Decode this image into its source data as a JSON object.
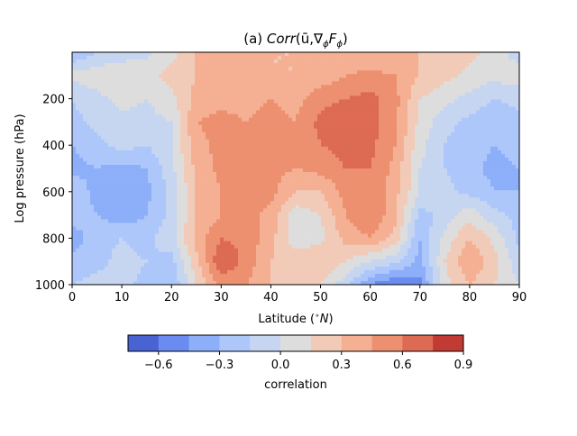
{
  "chart_data": {
    "type": "heatmap",
    "title": "(a) Corr(ū,∇φFφ)",
    "title_parts": {
      "prefix": "(a) ",
      "func": "Corr",
      "args": "(ū,∇",
      "sub1": "ϕ",
      "mid": "F",
      "sub2": "ϕ",
      "close": ")"
    },
    "xlabel": "Latitude (°N)",
    "xlabel_parts": {
      "text": "Latitude (",
      "deg": "∘",
      "unit": "N",
      "close": ")"
    },
    "ylabel": "Log pressure (hPa)",
    "xlim": [
      0,
      90
    ],
    "ylim": [
      0,
      1000
    ],
    "y_inverted": true,
    "x_ticks": [
      "0",
      "10",
      "20",
      "30",
      "40",
      "50",
      "60",
      "70",
      "80",
      "90"
    ],
    "y_ticks": [
      "200",
      "400",
      "600",
      "800",
      "1000"
    ],
    "colorbar": {
      "label": "correlation",
      "levels": [
        -0.75,
        -0.6,
        -0.45,
        -0.3,
        -0.15,
        0.0,
        0.15,
        0.3,
        0.45,
        0.6,
        0.75,
        0.9
      ],
      "colors": [
        "#4a63d3",
        "#6a8bef",
        "#8daff9",
        "#adc7fb",
        "#c6d6f1",
        "#dddddd",
        "#f2cbb8",
        "#f5b094",
        "#ed9070",
        "#dd6a52",
        "#c13b34"
      ],
      "tick_values": [
        -0.6,
        -0.3,
        0.0,
        0.3,
        0.6,
        0.9
      ],
      "tick_labels": [
        "−0.6",
        "−0.3",
        "0.0",
        "0.3",
        "0.6",
        "0.9"
      ]
    },
    "grid": false,
    "latitudes": [
      0,
      5,
      10,
      15,
      20,
      25,
      30,
      35,
      40,
      45,
      50,
      55,
      60,
      65,
      70,
      75,
      80,
      85,
      90
    ],
    "pressures": [
      0,
      100,
      200,
      300,
      400,
      500,
      600,
      700,
      800,
      900,
      1000
    ],
    "values": [
      [
        -0.3,
        -0.15,
        -0.1,
        -0.05,
        0.1,
        0.3,
        0.35,
        0.35,
        0.3,
        0.3,
        0.3,
        0.3,
        0.3,
        0.3,
        0.3,
        0.3,
        0.2,
        0.1,
        -0.1
      ],
      [
        0.05,
        0.1,
        0.15,
        0.1,
        0.2,
        0.3,
        0.35,
        0.35,
        0.3,
        0.3,
        0.35,
        0.45,
        0.5,
        0.45,
        0.3,
        0.2,
        0.1,
        0.05,
        0.1
      ],
      [
        -0.15,
        -0.05,
        0.05,
        0.0,
        0.1,
        0.35,
        0.4,
        0.4,
        0.45,
        0.4,
        0.55,
        0.6,
        0.65,
        0.5,
        0.15,
        0.05,
        -0.05,
        -0.15,
        -0.1
      ],
      [
        -0.2,
        -0.1,
        -0.05,
        -0.05,
        0.0,
        0.45,
        0.5,
        0.45,
        0.5,
        0.45,
        0.65,
        0.7,
        0.65,
        0.5,
        0.1,
        -0.1,
        -0.2,
        -0.25,
        -0.2
      ],
      [
        -0.3,
        -0.2,
        -0.1,
        -0.15,
        0.0,
        0.4,
        0.5,
        0.5,
        0.55,
        0.45,
        0.6,
        0.65,
        0.65,
        0.45,
        0.05,
        -0.15,
        -0.25,
        -0.3,
        -0.25
      ],
      [
        -0.35,
        -0.3,
        -0.35,
        -0.3,
        -0.05,
        0.35,
        0.5,
        0.55,
        0.5,
        0.45,
        0.5,
        0.6,
        0.6,
        0.4,
        0.0,
        -0.15,
        -0.25,
        -0.35,
        -0.3
      ],
      [
        -0.2,
        -0.35,
        -0.4,
        -0.35,
        -0.1,
        0.3,
        0.45,
        0.55,
        0.5,
        0.3,
        0.3,
        0.5,
        0.6,
        0.35,
        0.0,
        -0.1,
        -0.2,
        -0.3,
        -0.3
      ],
      [
        -0.2,
        -0.3,
        -0.4,
        -0.3,
        -0.1,
        0.3,
        0.45,
        0.5,
        0.4,
        0.05,
        0.15,
        0.45,
        0.6,
        0.35,
        -0.2,
        -0.1,
        0.1,
        -0.1,
        -0.2
      ],
      [
        -0.4,
        -0.2,
        -0.15,
        -0.2,
        -0.05,
        0.35,
        0.6,
        0.55,
        0.35,
        0.05,
        0.1,
        0.35,
        0.45,
        0.25,
        -0.3,
        0.05,
        0.3,
        0.1,
        -0.2
      ],
      [
        -0.25,
        -0.2,
        -0.1,
        -0.15,
        -0.2,
        0.25,
        0.75,
        0.55,
        0.3,
        0.25,
        0.3,
        0.15,
        0.0,
        -0.1,
        -0.35,
        0.15,
        0.45,
        0.2,
        -0.1
      ],
      [
        -0.15,
        -0.1,
        -0.1,
        -0.2,
        -0.3,
        0.15,
        0.5,
        0.45,
        0.3,
        0.3,
        0.15,
        -0.1,
        -0.45,
        -0.6,
        -0.5,
        0.1,
        0.3,
        0.15,
        0.0
      ]
    ]
  }
}
